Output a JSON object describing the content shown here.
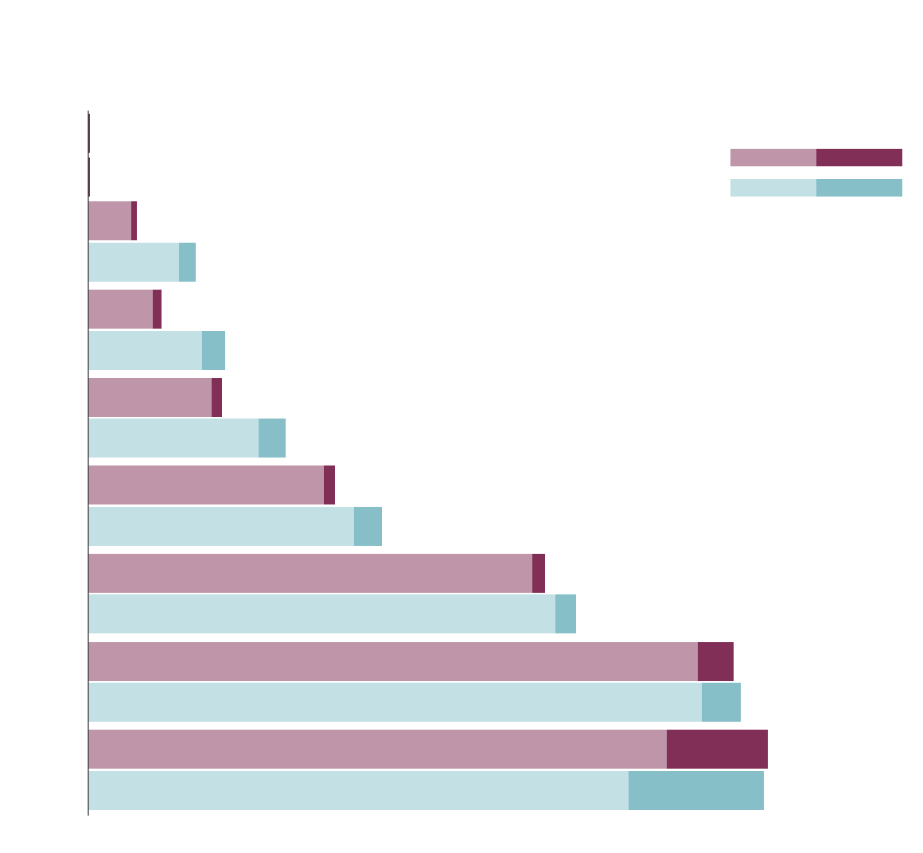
{
  "chart_data": {
    "type": "bar",
    "orientation": "horizontal",
    "stacked": true,
    "title": "",
    "xlabel": "",
    "ylabel": "",
    "xlim": [
      0,
      1000
    ],
    "grid": false,
    "legend": {
      "placement": "top-right",
      "entries": []
    },
    "palette": {
      "a_base": "#bf96a9",
      "a_extra": "#812f57",
      "b_base": "#c3e0e4",
      "b_extra": "#86bfc8"
    },
    "rows": [
      {
        "group": "a",
        "base": 0.0,
        "extra": 2.0
      },
      {
        "group": "a",
        "base": 0.0,
        "extra": 2.0
      },
      {
        "group": "a",
        "base": 54,
        "extra": 7
      },
      {
        "group": "b",
        "base": 114,
        "extra": 21
      },
      {
        "group": "a",
        "base": 81,
        "extra": 11
      },
      {
        "group": "b",
        "base": 143,
        "extra": 29
      },
      {
        "group": "a",
        "base": 155,
        "extra": 13
      },
      {
        "group": "b",
        "base": 214,
        "extra": 34
      },
      {
        "group": "a",
        "base": 296,
        "extra": 14
      },
      {
        "group": "b",
        "base": 334,
        "extra": 35
      },
      {
        "group": "a",
        "base": 558,
        "extra": 16
      },
      {
        "group": "b",
        "base": 587,
        "extra": 26
      },
      {
        "group": "a",
        "base": 766,
        "extra": 45
      },
      {
        "group": "b",
        "base": 771,
        "extra": 49
      },
      {
        "group": "a",
        "base": 727,
        "extra": 127
      },
      {
        "group": "b",
        "base": 679,
        "extra": 170
      }
    ]
  }
}
